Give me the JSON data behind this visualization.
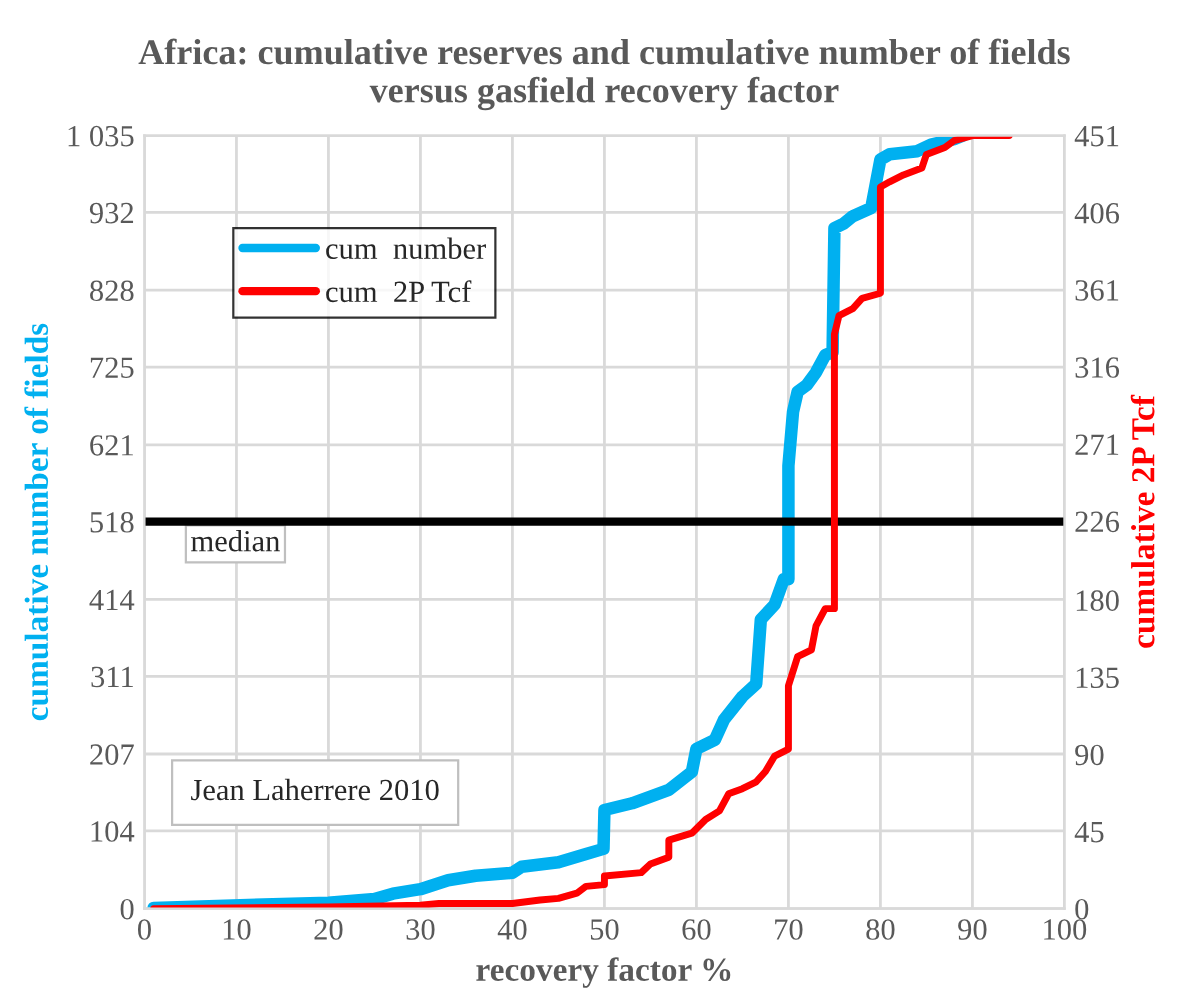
{
  "chart_data": {
    "type": "line",
    "title": "Africa: cumulative reserves and cumulative number of fields\nversus gasfield recovery factor",
    "xlabel": "recovery factor %",
    "ylabel": "cumulative number of fields",
    "y2label": "cumulative 2P Tcf",
    "xlim": [
      0,
      100
    ],
    "xticks": [
      0,
      10,
      20,
      30,
      40,
      50,
      60,
      70,
      80,
      90,
      100
    ],
    "ylim": [
      0,
      1035
    ],
    "yticks": [
      0,
      104,
      207,
      311,
      414,
      518,
      621,
      725,
      828,
      932,
      {
        "value": 1035,
        "label": "1 035"
      }
    ],
    "y2lim": [
      0,
      451
    ],
    "y2ticks": [
      0,
      45,
      90,
      135,
      180,
      226,
      271,
      316,
      361,
      406,
      451
    ],
    "grid": true,
    "legend": "top left",
    "series": [
      {
        "name": "cum  number",
        "color": "#00b0f0",
        "x": [
          1,
          20,
          25,
          27,
          30,
          33,
          36,
          40,
          41,
          45,
          48,
          49.9,
          50,
          53,
          57,
          59.5,
          60,
          62,
          63,
          65,
          66.5,
          67,
          68.5,
          69.5,
          70,
          70,
          70.5,
          71,
          72,
          73,
          74,
          74.8,
          75,
          76,
          77,
          79,
          80,
          81,
          84,
          85.5,
          88,
          89
        ],
        "values": [
          1,
          8,
          13,
          20,
          26,
          38,
          44,
          48,
          56,
          62,
          73,
          80,
          132,
          141,
          159,
          183,
          214,
          226,
          253,
          284,
          301,
          387,
          407,
          441,
          441,
          593,
          665,
          692,
          701,
          718,
          741,
          745,
          911,
          917,
          927,
          938,
          1003,
          1010,
          1014,
          1023,
          1030,
          1035
        ]
      },
      {
        "name": "cum  2P Tcf",
        "color": "#ff0000",
        "axis": "y2",
        "x": [
          1,
          20,
          30,
          32,
          40,
          43,
          45,
          47,
          48,
          50,
          50,
          54,
          55,
          57,
          57,
          59.5,
          61,
          62.5,
          63.5,
          65,
          66.5,
          67.5,
          68.5,
          70,
          70,
          71,
          72.5,
          73,
          74,
          75,
          75,
          75.5,
          77,
          78,
          80,
          80,
          81,
          82.5,
          84.5,
          85,
          87,
          88,
          90,
          94
        ],
        "values": [
          0,
          1,
          2,
          3,
          3,
          5,
          6,
          9,
          13,
          14,
          19,
          21,
          26,
          30,
          40,
          44,
          52,
          57,
          67,
          70,
          74,
          80,
          89,
          93,
          130,
          147,
          151,
          165,
          175,
          175,
          335,
          346,
          350,
          356,
          359,
          421,
          424,
          428,
          432,
          440,
          444,
          448,
          451,
          451
        ]
      }
    ],
    "ref_lines": [
      {
        "axis": "y",
        "value": 518,
        "label": "median",
        "color": "#000000"
      }
    ],
    "annotations": [
      "Jean Laherrere 2010"
    ]
  }
}
